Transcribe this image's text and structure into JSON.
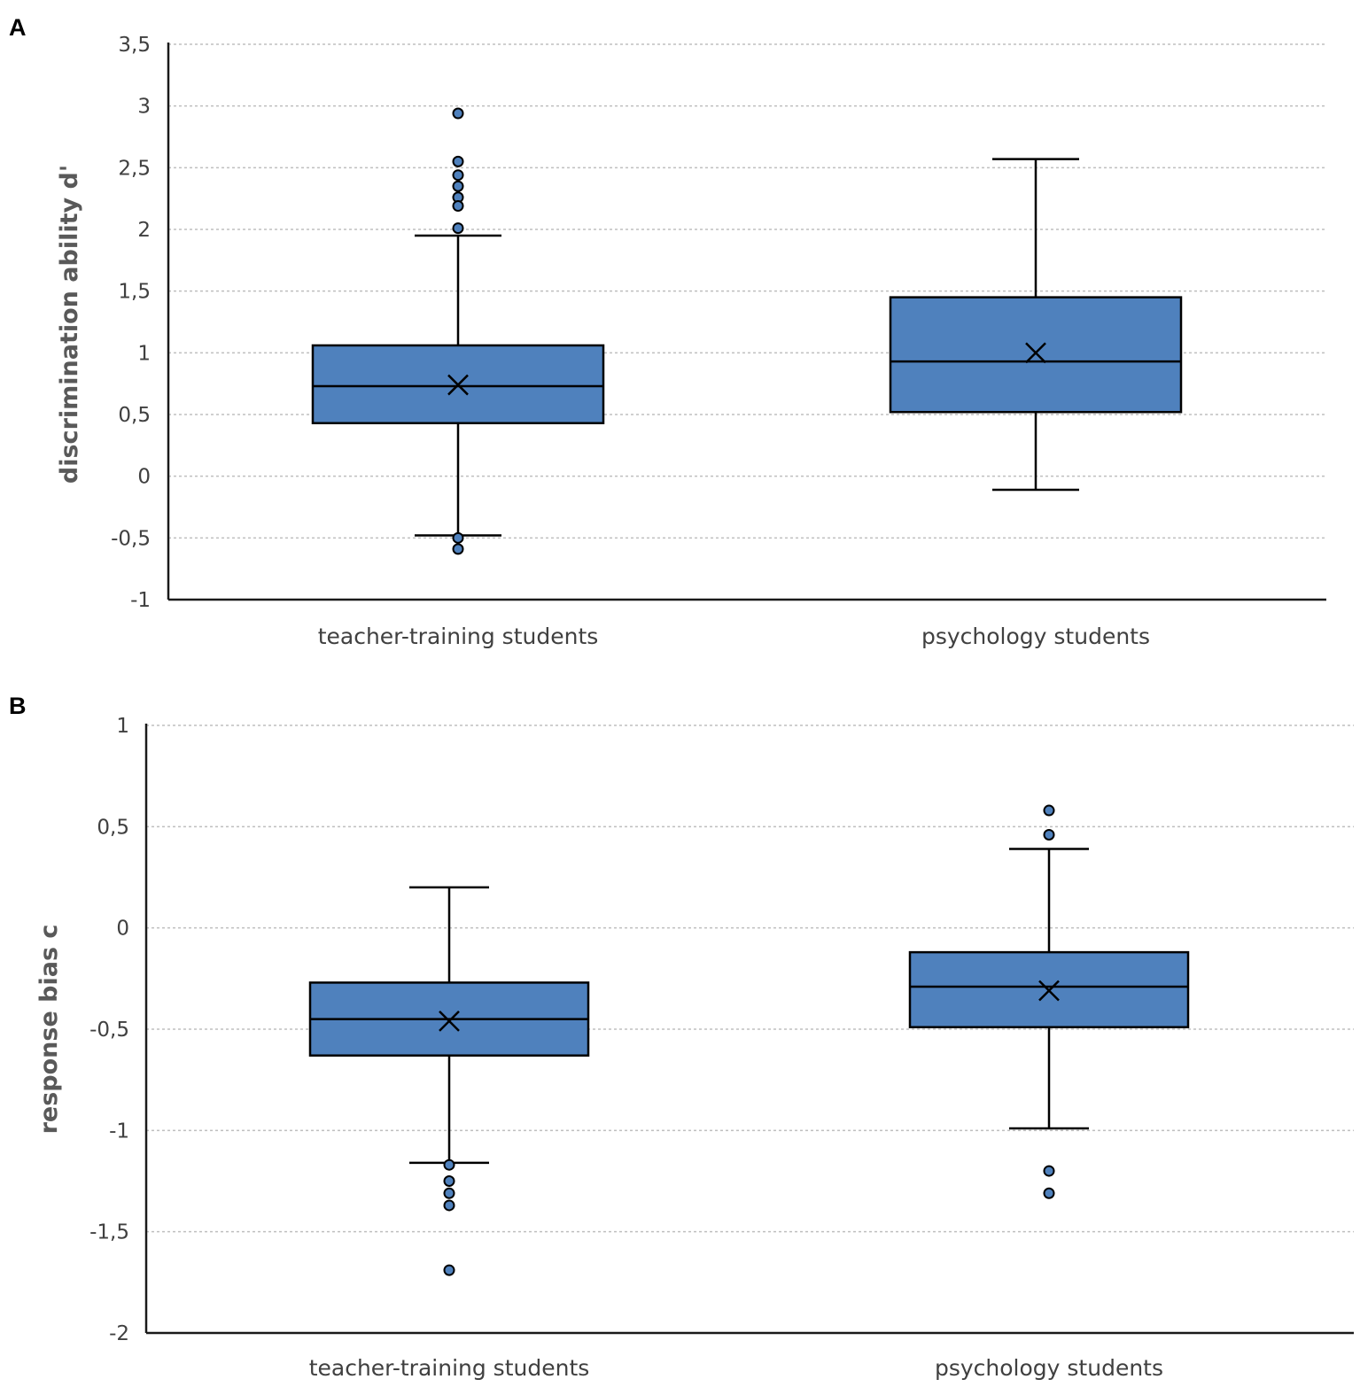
{
  "colors": {
    "box_fill": "#4F81BD",
    "grid": "#bfbfbf",
    "text": "#404040"
  },
  "chart_data": [
    {
      "panel": "A",
      "type": "box",
      "ylabel": "discrimination ability d'",
      "ylim": [
        -1,
        3.5
      ],
      "yticks": [
        -1,
        -0.5,
        0,
        0.5,
        1,
        1.5,
        2,
        2.5,
        3,
        3.5
      ],
      "ytick_labels": [
        "-1",
        "-0,5",
        "0",
        "0,5",
        "1",
        "1,5",
        "2",
        "2,5",
        "3",
        "3,5"
      ],
      "categories": [
        "teacher-training students",
        "psychology students"
      ],
      "boxes": [
        {
          "category": "teacher-training students",
          "whisker_low": -0.48,
          "q1": 0.43,
          "median": 0.73,
          "q3": 1.06,
          "whisker_high": 1.95,
          "mean": 0.74,
          "outliers": [
            2.94,
            2.55,
            2.44,
            2.35,
            2.26,
            2.19,
            2.01,
            -0.5,
            -0.59
          ]
        },
        {
          "category": "psychology students",
          "whisker_low": -0.11,
          "q1": 0.52,
          "median": 0.93,
          "q3": 1.45,
          "whisker_high": 2.57,
          "mean": 1.0,
          "outliers": []
        }
      ]
    },
    {
      "panel": "B",
      "type": "box",
      "ylabel": "response bias c",
      "ylim": [
        -2,
        1
      ],
      "yticks": [
        -2,
        -1.5,
        -1,
        -0.5,
        0,
        0.5,
        1
      ],
      "ytick_labels": [
        "-2",
        "-1,5",
        "-1",
        "-0,5",
        "0",
        "0,5",
        "1"
      ],
      "categories": [
        "teacher-training students",
        "psychology students"
      ],
      "boxes": [
        {
          "category": "teacher-training students",
          "whisker_low": -1.16,
          "q1": -0.63,
          "median": -0.45,
          "q3": -0.27,
          "whisker_high": 0.2,
          "mean": -0.46,
          "outliers": [
            -1.17,
            -1.25,
            -1.31,
            -1.37,
            -1.69
          ]
        },
        {
          "category": "psychology students",
          "whisker_low": -0.99,
          "q1": -0.49,
          "median": -0.29,
          "q3": -0.12,
          "whisker_high": 0.39,
          "mean": -0.31,
          "outliers": [
            0.58,
            0.46,
            -1.2,
            -1.31
          ]
        }
      ]
    }
  ]
}
